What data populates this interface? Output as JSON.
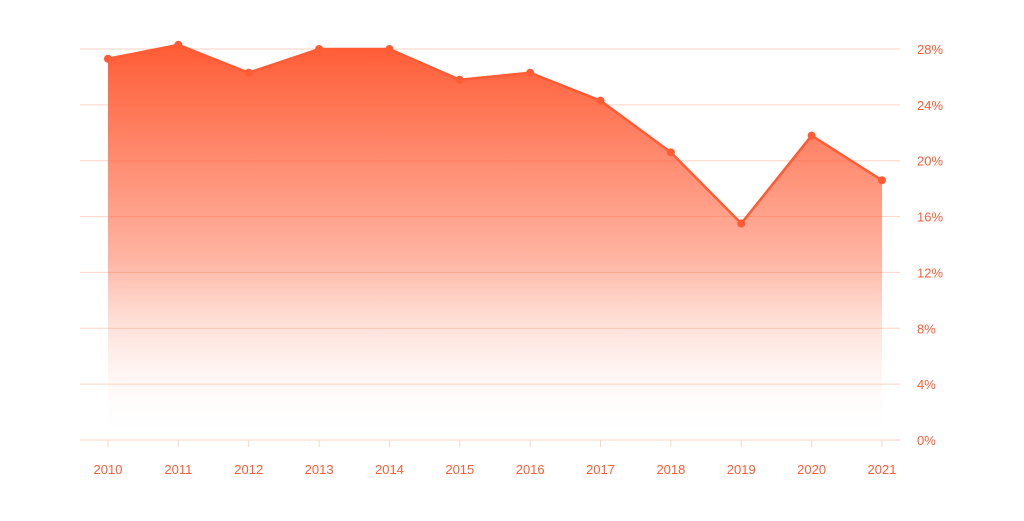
{
  "colors": {
    "accent": "#ff5c35",
    "grid": "#fcd3c6",
    "area_top": "#ff5c35",
    "area_bottom": "#ffffff",
    "tick_text": "#ff5c35"
  },
  "chart_data": {
    "type": "area",
    "x": [
      "2010",
      "2011",
      "2012",
      "2013",
      "2014",
      "2015",
      "2016",
      "2017",
      "2018",
      "2019",
      "2020",
      "2021"
    ],
    "series": [
      {
        "values": [
          27.3,
          28.3,
          26.3,
          28.0,
          28.0,
          25.8,
          26.3,
          24.3,
          20.6,
          15.5,
          21.8,
          18.6
        ]
      }
    ],
    "y_ticks": [
      "0%",
      "4%",
      "8%",
      "12%",
      "16%",
      "20%",
      "24%",
      "28%"
    ],
    "y_tick_values": [
      0,
      4,
      8,
      12,
      16,
      20,
      24,
      28
    ],
    "ylim": [
      0,
      28
    ],
    "y_axis_position": "right",
    "grid": true,
    "legend": "none",
    "title": "",
    "xlabel": "",
    "ylabel": ""
  }
}
